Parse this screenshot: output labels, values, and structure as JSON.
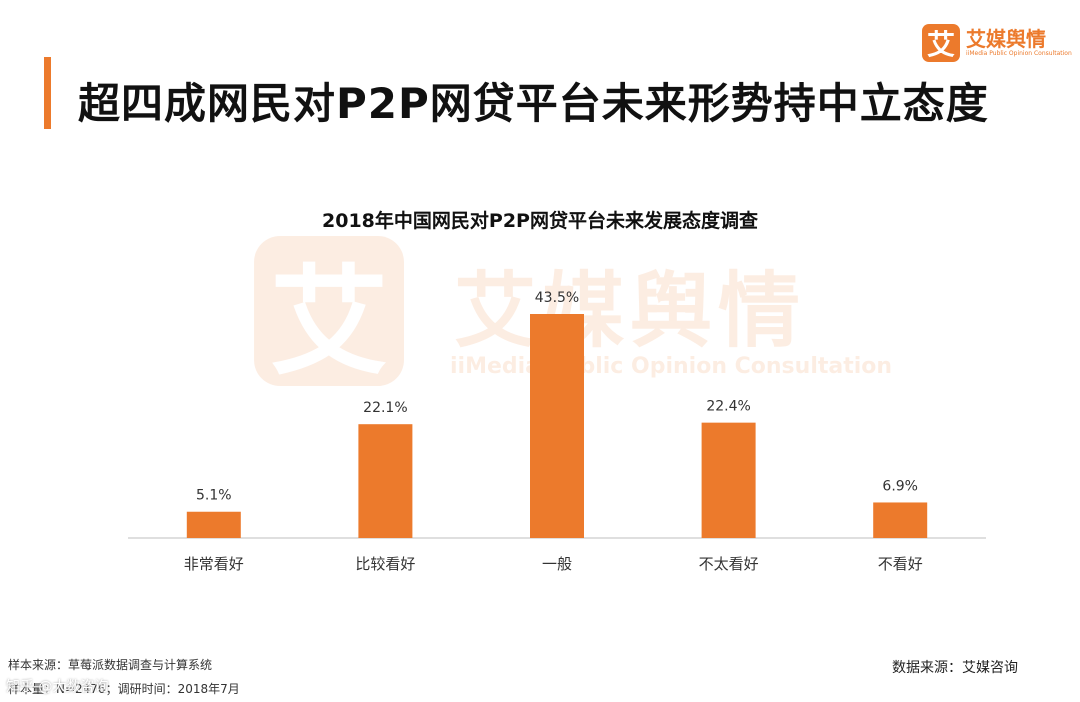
{
  "header": {
    "title": "超四成网民对P2P网贷平台未来形势持中立态度",
    "accent_color": "#ec7a2c"
  },
  "logo": {
    "mark": "艾",
    "name_cn": "艾媒舆情",
    "name_en": "iiMedia Public Opinion Consultation"
  },
  "watermark": {
    "mark": "艾",
    "name_cn": "艾媒舆情",
    "name_en": "iiMedia Public Opinion Consultation"
  },
  "chart_data": {
    "type": "bar",
    "title": "2018年中国网民对P2P网贷平台未来发展态度调查",
    "categories": [
      "非常看好",
      "比较看好",
      "一般",
      "不太看好",
      "不看好"
    ],
    "values": [
      5.1,
      22.1,
      43.5,
      22.4,
      6.9
    ],
    "value_labels": [
      "5.1%",
      "22.1%",
      "43.5%",
      "22.4%",
      "6.9%"
    ],
    "unit": "%",
    "bar_color": "#ec7a2c",
    "xlabel": "",
    "ylabel": "",
    "ylim": [
      0,
      43.5
    ],
    "grid": false,
    "legend": "none"
  },
  "footer": {
    "sample_source": "样本来源：草莓派数据调查与计算系统",
    "sample_size": "样本量：N=2476；调研时间：2018年7月",
    "data_source": "数据来源：艾媒咨询",
    "corner_watermark": "知乎 @大数咨询"
  }
}
